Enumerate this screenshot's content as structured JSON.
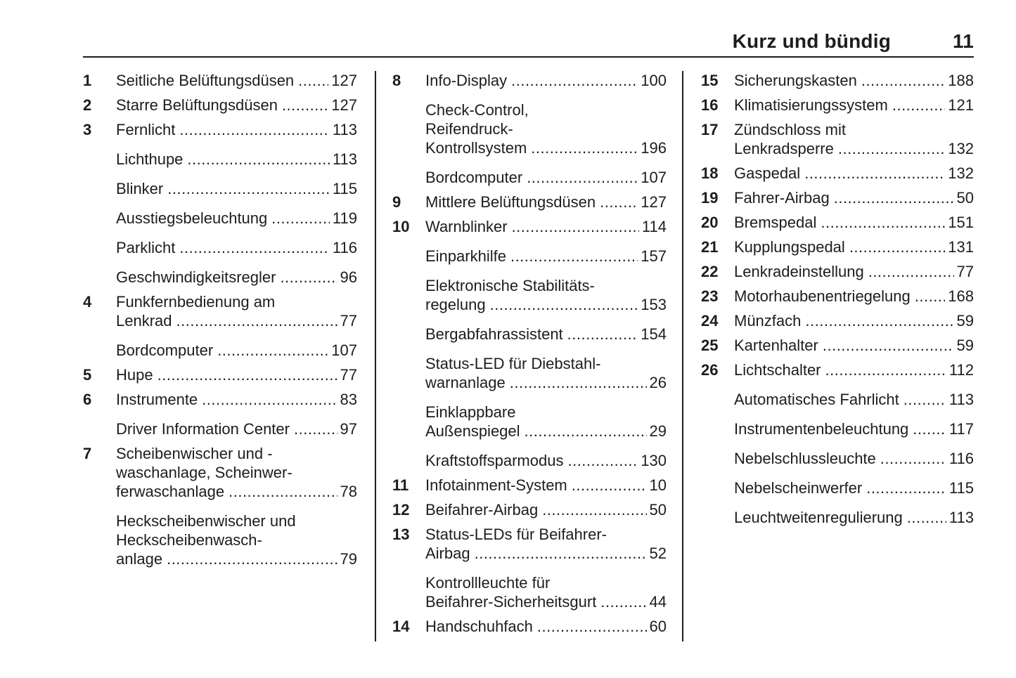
{
  "header": {
    "title": "Kurz und bündig",
    "page_number": "11"
  },
  "leader_fill": "............................................................",
  "columns": [
    {
      "entries": [
        {
          "num": "1",
          "lines": [
            "Seitliche Belüftungsdüsen"
          ],
          "page": "127"
        },
        {
          "num": "2",
          "lines": [
            "Starre Belüftungsdüsen"
          ],
          "page": "127"
        },
        {
          "num": "3",
          "lines": [
            "Fernlicht"
          ],
          "page": "113"
        },
        {
          "num": "",
          "lines": [
            "Lichthupe"
          ],
          "page": "113"
        },
        {
          "num": "",
          "lines": [
            "Blinker"
          ],
          "page": "115"
        },
        {
          "num": "",
          "lines": [
            "Ausstiegsbeleuchtung"
          ],
          "page": "119"
        },
        {
          "num": "",
          "lines": [
            "Parklicht"
          ],
          "page": "116"
        },
        {
          "num": "",
          "lines": [
            "Geschwindigkeitsregler"
          ],
          "page": "96"
        },
        {
          "num": "4",
          "lines": [
            "Funkfernbedienung am",
            "Lenkrad"
          ],
          "page": "77"
        },
        {
          "num": "",
          "lines": [
            "Bordcomputer"
          ],
          "page": "107"
        },
        {
          "num": "5",
          "lines": [
            "Hupe"
          ],
          "page": "77"
        },
        {
          "num": "6",
          "lines": [
            "Instrumente"
          ],
          "page": "83"
        },
        {
          "num": "",
          "lines": [
            "Driver Information Center"
          ],
          "page": "97"
        },
        {
          "num": "7",
          "lines": [
            "Scheibenwischer und -",
            "waschanlage, Scheinwer-",
            "ferwaschanlage"
          ],
          "page": "78"
        },
        {
          "num": "",
          "lines": [
            "Heckscheibenwischer und",
            "Heckscheibenwasch-",
            "anlage"
          ],
          "page": "79"
        }
      ]
    },
    {
      "entries": [
        {
          "num": "8",
          "lines": [
            "Info-Display"
          ],
          "page": "100"
        },
        {
          "num": "",
          "lines": [
            "Check-Control,",
            "Reifendruck-",
            "Kontrollsystem"
          ],
          "page": "196"
        },
        {
          "num": "",
          "lines": [
            "Bordcomputer"
          ],
          "page": "107"
        },
        {
          "num": "9",
          "lines": [
            "Mittlere Belüftungsdüsen"
          ],
          "page": "127"
        },
        {
          "num": "10",
          "lines": [
            "Warnblinker"
          ],
          "page": "114"
        },
        {
          "num": "",
          "lines": [
            "Einparkhilfe"
          ],
          "page": "157"
        },
        {
          "num": "",
          "lines": [
            "Elektronische Stabilitäts-",
            "regelung"
          ],
          "page": "153"
        },
        {
          "num": "",
          "lines": [
            "Bergabfahrassistent"
          ],
          "page": "154"
        },
        {
          "num": "",
          "lines": [
            "Status-LED für Diebstahl-",
            "warnanlage"
          ],
          "page": "26"
        },
        {
          "num": "",
          "lines": [
            "Einklappbare",
            "Außenspiegel"
          ],
          "page": "29"
        },
        {
          "num": "",
          "lines": [
            "Kraftstoffsparmodus"
          ],
          "page": "130"
        },
        {
          "num": "11",
          "lines": [
            "Infotainment-System"
          ],
          "page": "10"
        },
        {
          "num": "12",
          "lines": [
            "Beifahrer-Airbag"
          ],
          "page": "50"
        },
        {
          "num": "13",
          "lines": [
            "Status-LEDs für Beifahrer-",
            "Airbag"
          ],
          "page": "52"
        },
        {
          "num": "",
          "lines": [
            "Kontrollleuchte für",
            "Beifahrer-Sicherheitsgurt"
          ],
          "page": "44"
        },
        {
          "num": "14",
          "lines": [
            "Handschuhfach"
          ],
          "page": "60"
        }
      ]
    },
    {
      "entries": [
        {
          "num": "15",
          "lines": [
            "Sicherungskasten"
          ],
          "page": "188"
        },
        {
          "num": "16",
          "lines": [
            "Klimatisierungssystem"
          ],
          "page": "121"
        },
        {
          "num": "17",
          "lines": [
            "Zündschloss mit",
            "Lenkradsperre"
          ],
          "page": "132"
        },
        {
          "num": "18",
          "lines": [
            "Gaspedal"
          ],
          "page": "132"
        },
        {
          "num": "19",
          "lines": [
            "Fahrer-Airbag"
          ],
          "page": "50"
        },
        {
          "num": "20",
          "lines": [
            "Bremspedal"
          ],
          "page": "151"
        },
        {
          "num": "21",
          "lines": [
            "Kupplungspedal"
          ],
          "page": "131"
        },
        {
          "num": "22",
          "lines": [
            "Lenkradeinstellung"
          ],
          "page": "77"
        },
        {
          "num": "23",
          "lines": [
            "Motorhaubenentriegelung"
          ],
          "page": "168"
        },
        {
          "num": "24",
          "lines": [
            "Münzfach"
          ],
          "page": "59"
        },
        {
          "num": "25",
          "lines": [
            "Kartenhalter"
          ],
          "page": "59"
        },
        {
          "num": "26",
          "lines": [
            "Lichtschalter"
          ],
          "page": "112"
        },
        {
          "num": "",
          "lines": [
            "Automatisches Fahrlicht"
          ],
          "page": "113"
        },
        {
          "num": "",
          "lines": [
            "Instrumentenbeleuchtung"
          ],
          "page": "117"
        },
        {
          "num": "",
          "lines": [
            "Nebelschlussleuchte"
          ],
          "page": "116"
        },
        {
          "num": "",
          "lines": [
            "Nebelscheinwerfer"
          ],
          "page": "115"
        },
        {
          "num": "",
          "lines": [
            "Leuchtweitenregulierung"
          ],
          "page": "113"
        }
      ]
    }
  ]
}
